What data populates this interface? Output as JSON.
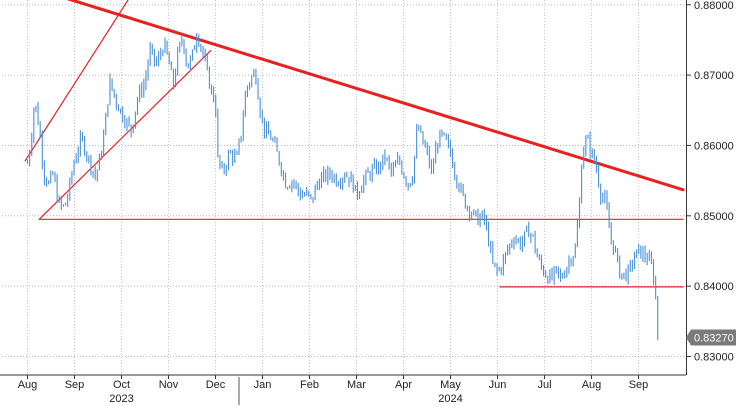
{
  "chart_data": {
    "type": "line",
    "title": "",
    "xlabel": "",
    "ylabel": "",
    "ylim": [
      0.829,
      0.8815
    ],
    "y_ticks": [
      "0.83000",
      "0.84000",
      "0.85000",
      "0.86000",
      "0.87000",
      "0.88000"
    ],
    "x_month_labels": [
      "Aug",
      "Sep",
      "Oct",
      "Nov",
      "Dec",
      "Jan",
      "Feb",
      "Mar",
      "Apr",
      "May",
      "Jun",
      "Jul",
      "Aug",
      "Sep"
    ],
    "x_year_labels": [
      {
        "label": "2023",
        "month_index": 2
      },
      {
        "label": "2024",
        "month_index": 9
      }
    ],
    "last_price": "0.83270",
    "grid": true,
    "grid_style": "dotted",
    "series": [
      {
        "color": "#4a90d9",
        "anchors": [
          [
            0.0,
            0.8575
          ],
          [
            0.08,
            0.861
          ],
          [
            0.15,
            0.8665
          ],
          [
            0.25,
            0.8625
          ],
          [
            0.35,
            0.856
          ],
          [
            0.45,
            0.8545
          ],
          [
            0.55,
            0.856
          ],
          [
            0.65,
            0.852
          ],
          [
            0.75,
            0.851
          ],
          [
            0.85,
            0.8525
          ],
          [
            1.0,
            0.858
          ],
          [
            1.15,
            0.861
          ],
          [
            1.3,
            0.858
          ],
          [
            1.45,
            0.8555
          ],
          [
            1.6,
            0.86
          ],
          [
            1.75,
            0.869
          ],
          [
            1.9,
            0.866
          ],
          [
            2.05,
            0.864
          ],
          [
            2.2,
            0.862
          ],
          [
            2.35,
            0.867
          ],
          [
            2.5,
            0.869
          ],
          [
            2.6,
            0.8735
          ],
          [
            2.75,
            0.8715
          ],
          [
            2.9,
            0.8745
          ],
          [
            3.0,
            0.872
          ],
          [
            3.1,
            0.8685
          ],
          [
            3.2,
            0.873
          ],
          [
            3.3,
            0.8755
          ],
          [
            3.4,
            0.871
          ],
          [
            3.5,
            0.8725
          ],
          [
            3.6,
            0.876
          ],
          [
            3.7,
            0.874
          ],
          [
            3.8,
            0.871
          ],
          [
            3.9,
            0.868
          ],
          [
            4.0,
            0.866
          ],
          [
            4.05,
            0.858
          ],
          [
            4.15,
            0.856
          ],
          [
            4.3,
            0.859
          ],
          [
            4.45,
            0.858
          ],
          [
            4.55,
            0.862
          ],
          [
            4.65,
            0.868
          ],
          [
            4.75,
            0.8695
          ],
          [
            4.85,
            0.8705
          ],
          [
            4.95,
            0.865
          ],
          [
            5.05,
            0.862
          ],
          [
            5.2,
            0.861
          ],
          [
            5.35,
            0.858
          ],
          [
            5.5,
            0.8545
          ],
          [
            5.65,
            0.855
          ],
          [
            5.8,
            0.853
          ],
          [
            5.95,
            0.853
          ],
          [
            6.05,
            0.852
          ],
          [
            6.15,
            0.8545
          ],
          [
            6.3,
            0.8555
          ],
          [
            6.45,
            0.856
          ],
          [
            6.6,
            0.855
          ],
          [
            6.75,
            0.856
          ],
          [
            6.9,
            0.855
          ],
          [
            7.0,
            0.853
          ],
          [
            7.1,
            0.8545
          ],
          [
            7.2,
            0.8555
          ],
          [
            7.35,
            0.8565
          ],
          [
            7.5,
            0.857
          ],
          [
            7.6,
            0.8585
          ],
          [
            7.75,
            0.856
          ],
          [
            7.9,
            0.858
          ],
          [
            8.0,
            0.856
          ],
          [
            8.1,
            0.8545
          ],
          [
            8.2,
            0.856
          ],
          [
            8.3,
            0.863
          ],
          [
            8.4,
            0.8605
          ],
          [
            8.5,
            0.859
          ],
          [
            8.6,
            0.856
          ],
          [
            8.7,
            0.86
          ],
          [
            8.8,
            0.8615
          ],
          [
            8.9,
            0.8605
          ],
          [
            9.0,
            0.859
          ],
          [
            9.1,
            0.856
          ],
          [
            9.2,
            0.854
          ],
          [
            9.3,
            0.852
          ],
          [
            9.4,
            0.851
          ],
          [
            9.5,
            0.85
          ],
          [
            9.6,
            0.8495
          ],
          [
            9.7,
            0.85
          ],
          [
            9.8,
            0.847
          ],
          [
            9.9,
            0.843
          ],
          [
            10.0,
            0.842
          ],
          [
            10.1,
            0.843
          ],
          [
            10.2,
            0.845
          ],
          [
            10.35,
            0.847
          ],
          [
            10.5,
            0.846
          ],
          [
            10.65,
            0.848
          ],
          [
            10.75,
            0.847
          ],
          [
            10.85,
            0.844
          ],
          [
            10.95,
            0.8425
          ],
          [
            11.05,
            0.8415
          ],
          [
            11.15,
            0.841
          ],
          [
            11.25,
            0.842
          ],
          [
            11.35,
            0.841
          ],
          [
            11.45,
            0.8425
          ],
          [
            11.55,
            0.844
          ],
          [
            11.65,
            0.845
          ],
          [
            11.75,
            0.852
          ],
          [
            11.8,
            0.859
          ],
          [
            11.9,
            0.861
          ],
          [
            12.0,
            0.859
          ],
          [
            12.1,
            0.857
          ],
          [
            12.2,
            0.853
          ],
          [
            12.3,
            0.852
          ],
          [
            12.4,
            0.847
          ],
          [
            12.5,
            0.845
          ],
          [
            12.6,
            0.842
          ],
          [
            12.7,
            0.8415
          ],
          [
            12.8,
            0.842
          ],
          [
            12.9,
            0.844
          ],
          [
            13.0,
            0.845
          ],
          [
            13.1,
            0.8445
          ],
          [
            13.2,
            0.844
          ],
          [
            13.3,
            0.8425
          ],
          [
            13.35,
            0.8395
          ],
          [
            13.4,
            0.836
          ],
          [
            13.45,
            0.8327
          ]
        ]
      }
    ],
    "trendlines": [
      {
        "color": "#e8201f",
        "width": "thick",
        "points": [
          [
            0.3,
            0.882
          ],
          [
            13.95,
            0.8537
          ]
        ]
      },
      {
        "color": "#e8201f",
        "width": "thin",
        "points": [
          [
            -0.05,
            0.8578
          ],
          [
            2.6,
            0.8855
          ]
        ]
      },
      {
        "color": "#e8201f",
        "width": "thin",
        "points": [
          [
            0.25,
            0.8495
          ],
          [
            3.9,
            0.8735
          ]
        ]
      },
      {
        "color": "#e8201f",
        "width": "thin",
        "points": [
          [
            0.25,
            0.8495
          ],
          [
            13.95,
            0.8495
          ]
        ]
      },
      {
        "color": "#e8201f",
        "width": "thin",
        "points": [
          [
            10.05,
            0.8399
          ],
          [
            13.95,
            0.8399
          ]
        ]
      }
    ]
  }
}
